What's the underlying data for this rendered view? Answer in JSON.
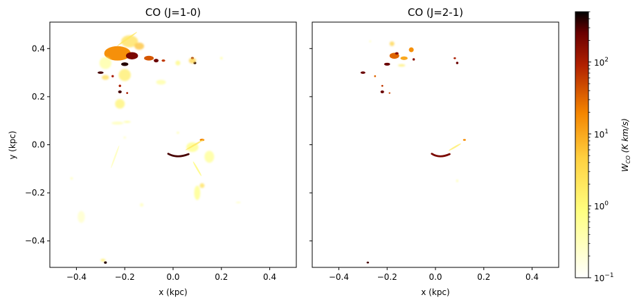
{
  "chart_data": {
    "type": "heatmap",
    "colormap": "afmhot_r",
    "xlabel": "x (kpc)",
    "ylabel": "y (kpc)",
    "xlim": [
      -0.51,
      0.51
    ],
    "ylim": [
      -0.51,
      0.51
    ],
    "xticks": [
      -0.4,
      -0.2,
      0.0,
      0.2,
      0.4
    ],
    "yticks": [
      -0.4,
      -0.2,
      0.0,
      0.2,
      0.4
    ],
    "xtick_labels": [
      "−0.4",
      "−0.2",
      "0.0",
      "0.2",
      "0.4"
    ],
    "ytick_labels": [
      "−0.4",
      "−0.2",
      "0.0",
      "0.2",
      "0.4"
    ],
    "panels": [
      {
        "title": "CO (J=1-0)",
        "features": [
          {
            "kind": "clump",
            "x": -0.23,
            "y": 0.38,
            "w": 0.11,
            "h": 0.06,
            "log_level": 1.2
          },
          {
            "kind": "clump",
            "x": -0.17,
            "y": 0.37,
            "w": 0.05,
            "h": 0.03,
            "log_level": 2.3
          },
          {
            "kind": "clump",
            "x": -0.2,
            "y": 0.335,
            "w": 0.03,
            "h": 0.015,
            "log_level": 2.6
          },
          {
            "kind": "clump",
            "x": -0.1,
            "y": 0.36,
            "w": 0.04,
            "h": 0.02,
            "log_level": 1.6
          },
          {
            "kind": "clump",
            "x": -0.07,
            "y": 0.35,
            "w": 0.02,
            "h": 0.015,
            "log_level": 2.4
          },
          {
            "kind": "clump",
            "x": -0.04,
            "y": 0.35,
            "w": 0.015,
            "h": 0.01,
            "log_level": 1.8
          },
          {
            "kind": "clump",
            "x": -0.18,
            "y": 0.43,
            "w": 0.07,
            "h": 0.05,
            "log_level": 0.4
          },
          {
            "kind": "clump",
            "x": -0.2,
            "y": 0.29,
            "w": 0.05,
            "h": 0.05,
            "log_level": 0.2
          },
          {
            "kind": "clump",
            "x": -0.3,
            "y": 0.3,
            "w": 0.025,
            "h": 0.01,
            "log_level": 2.5
          },
          {
            "kind": "clump",
            "x": -0.28,
            "y": 0.28,
            "w": 0.03,
            "h": 0.02,
            "log_level": 0.5
          },
          {
            "kind": "clump",
            "x": -0.25,
            "y": 0.285,
            "w": 0.01,
            "h": 0.01,
            "log_level": 2.0
          },
          {
            "kind": "clump",
            "x": -0.22,
            "y": 0.22,
            "w": 0.015,
            "h": 0.012,
            "log_level": 2.5
          },
          {
            "kind": "clump",
            "x": -0.22,
            "y": 0.245,
            "w": 0.01,
            "h": 0.01,
            "log_level": 2.0
          },
          {
            "kind": "clump",
            "x": -0.19,
            "y": 0.215,
            "w": 0.008,
            "h": 0.008,
            "log_level": 2.0
          },
          {
            "kind": "clump",
            "x": -0.22,
            "y": 0.17,
            "w": 0.04,
            "h": 0.04,
            "log_level": 0.1
          },
          {
            "kind": "clump",
            "x": 0.08,
            "y": 0.36,
            "w": 0.012,
            "h": 0.01,
            "log_level": 2.2
          },
          {
            "kind": "clump",
            "x": 0.09,
            "y": 0.34,
            "w": 0.012,
            "h": 0.01,
            "log_level": 2.6
          },
          {
            "kind": "clump",
            "x": 0.08,
            "y": 0.35,
            "w": 0.03,
            "h": 0.025,
            "log_level": 0.6
          },
          {
            "kind": "clump",
            "x": 0.02,
            "y": 0.34,
            "w": 0.02,
            "h": 0.02,
            "log_level": 0.0
          },
          {
            "kind": "clump",
            "x": 0.2,
            "y": 0.36,
            "w": 0.01,
            "h": 0.01,
            "log_level": -0.2
          },
          {
            "kind": "clump",
            "x": -0.05,
            "y": 0.26,
            "w": 0.04,
            "h": 0.02,
            "log_level": -0.3
          },
          {
            "kind": "clump",
            "x": -0.23,
            "y": 0.09,
            "w": 0.05,
            "h": 0.012,
            "log_level": -0.4
          },
          {
            "kind": "clump",
            "x": -0.19,
            "y": 0.095,
            "w": 0.03,
            "h": 0.008,
            "log_level": -0.2
          },
          {
            "kind": "clump",
            "x": -0.2,
            "y": 0.03,
            "w": 0.01,
            "h": 0.01,
            "log_level": -0.5
          },
          {
            "kind": "clump",
            "x": 0.02,
            "y": 0.05,
            "w": 0.01,
            "h": 0.008,
            "log_level": -0.2
          },
          {
            "kind": "clump",
            "x": 0.12,
            "y": 0.02,
            "w": 0.02,
            "h": 0.01,
            "log_level": 1.3
          },
          {
            "kind": "clump",
            "x": 0.08,
            "y": -0.01,
            "w": 0.05,
            "h": 0.04,
            "log_level": -0.1
          },
          {
            "kind": "clump",
            "x": 0.15,
            "y": -0.05,
            "w": 0.04,
            "h": 0.05,
            "log_level": -0.2
          },
          {
            "kind": "clump",
            "x": 0.1,
            "y": -0.2,
            "w": 0.025,
            "h": 0.06,
            "log_level": -0.1
          },
          {
            "kind": "clump",
            "x": 0.12,
            "y": -0.17,
            "w": 0.02,
            "h": 0.02,
            "log_level": 0.4
          },
          {
            "kind": "clump",
            "x": 0.27,
            "y": -0.24,
            "w": 0.02,
            "h": 0.006,
            "log_level": -0.5
          },
          {
            "kind": "clump",
            "x": -0.28,
            "y": -0.49,
            "w": 0.012,
            "h": 0.01,
            "log_level": 2.6
          },
          {
            "kind": "clump",
            "x": -0.29,
            "y": -0.48,
            "w": 0.02,
            "h": 0.012,
            "log_level": 0.2
          },
          {
            "kind": "clump",
            "x": -0.38,
            "y": -0.3,
            "w": 0.03,
            "h": 0.05,
            "log_level": -0.6
          },
          {
            "kind": "clump",
            "x": -0.42,
            "y": -0.14,
            "w": 0.01,
            "h": 0.01,
            "log_level": -0.4
          },
          {
            "kind": "clump",
            "x": -0.13,
            "y": -0.25,
            "w": 0.015,
            "h": 0.015,
            "log_level": -0.5
          },
          {
            "kind": "clump",
            "x": -0.28,
            "y": 0.34,
            "w": 0.05,
            "h": 0.05,
            "log_level": -0.3
          },
          {
            "kind": "clump",
            "x": -0.14,
            "y": 0.41,
            "w": 0.04,
            "h": 0.03,
            "log_level": 0.8
          },
          {
            "kind": "arc",
            "x": 0.02,
            "y": -0.045,
            "w": 0.04,
            "h": 0.01,
            "log_level": 2.5
          },
          {
            "kind": "filament",
            "x": -0.19,
            "y": 0.44,
            "w": 0.1,
            "h": 0.004,
            "angle": -35,
            "log_level": 0.3
          },
          {
            "kind": "filament",
            "x": 0.09,
            "y": 0.0,
            "w": 0.09,
            "h": 0.004,
            "angle": -30,
            "log_level": 0.3
          },
          {
            "kind": "filament",
            "x": 0.1,
            "y": -0.1,
            "w": 0.07,
            "h": 0.004,
            "angle": 60,
            "log_level": 0.0
          },
          {
            "kind": "filament",
            "x": -0.24,
            "y": -0.05,
            "w": 0.1,
            "h": 0.004,
            "angle": -70,
            "log_level": -0.5
          }
        ]
      },
      {
        "title": "CO (J=2-1)",
        "features": [
          {
            "kind": "clump",
            "x": -0.17,
            "y": 0.37,
            "w": 0.04,
            "h": 0.025,
            "log_level": 1.5
          },
          {
            "kind": "clump",
            "x": -0.2,
            "y": 0.335,
            "w": 0.025,
            "h": 0.012,
            "log_level": 2.4
          },
          {
            "kind": "clump",
            "x": -0.16,
            "y": 0.38,
            "w": 0.015,
            "h": 0.01,
            "log_level": 2.2
          },
          {
            "kind": "clump",
            "x": -0.13,
            "y": 0.36,
            "w": 0.03,
            "h": 0.015,
            "log_level": 1.0
          },
          {
            "kind": "clump",
            "x": -0.1,
            "y": 0.395,
            "w": 0.02,
            "h": 0.02,
            "log_level": 1.2
          },
          {
            "kind": "clump",
            "x": -0.09,
            "y": 0.355,
            "w": 0.01,
            "h": 0.01,
            "log_level": 2.2
          },
          {
            "kind": "clump",
            "x": -0.18,
            "y": 0.42,
            "w": 0.02,
            "h": 0.02,
            "log_level": 0.6
          },
          {
            "kind": "clump",
            "x": -0.14,
            "y": 0.33,
            "w": 0.03,
            "h": 0.01,
            "log_level": 0.2
          },
          {
            "kind": "clump",
            "x": -0.3,
            "y": 0.3,
            "w": 0.02,
            "h": 0.01,
            "log_level": 2.4
          },
          {
            "kind": "clump",
            "x": -0.25,
            "y": 0.285,
            "w": 0.008,
            "h": 0.008,
            "log_level": 1.5
          },
          {
            "kind": "clump",
            "x": -0.22,
            "y": 0.22,
            "w": 0.015,
            "h": 0.012,
            "log_level": 2.4
          },
          {
            "kind": "clump",
            "x": -0.22,
            "y": 0.245,
            "w": 0.008,
            "h": 0.008,
            "log_level": 1.8
          },
          {
            "kind": "clump",
            "x": -0.19,
            "y": 0.215,
            "w": 0.006,
            "h": 0.006,
            "log_level": 1.7
          },
          {
            "kind": "clump",
            "x": 0.08,
            "y": 0.36,
            "w": 0.01,
            "h": 0.008,
            "log_level": 2.0
          },
          {
            "kind": "clump",
            "x": 0.09,
            "y": 0.34,
            "w": 0.01,
            "h": 0.01,
            "log_level": 2.4
          },
          {
            "kind": "clump",
            "x": -0.27,
            "y": 0.43,
            "w": 0.006,
            "h": 0.006,
            "log_level": -0.2
          },
          {
            "kind": "clump",
            "x": 0.12,
            "y": 0.02,
            "w": 0.012,
            "h": 0.008,
            "log_level": 1.2
          },
          {
            "kind": "clump",
            "x": 0.09,
            "y": -0.15,
            "w": 0.008,
            "h": 0.01,
            "log_level": -0.2
          },
          {
            "kind": "clump",
            "x": -0.28,
            "y": -0.49,
            "w": 0.01,
            "h": 0.008,
            "log_level": 2.5
          },
          {
            "kind": "arc",
            "x": 0.02,
            "y": -0.045,
            "w": 0.035,
            "h": 0.01,
            "log_level": 2.3
          },
          {
            "kind": "filament",
            "x": 0.08,
            "y": -0.01,
            "w": 0.06,
            "h": 0.003,
            "angle": -30,
            "log_level": 0.2
          }
        ]
      }
    ],
    "colorbar": {
      "label": "W_CO (K km/s)",
      "label_main": "W",
      "label_sub": "CO",
      "label_unit": " (K km/s)",
      "scale": "log",
      "vmin": 0.1,
      "vmax": 500,
      "ticks": [
        0.1,
        1,
        10,
        100
      ],
      "tick_labels": [
        {
          "base": "10",
          "exp": "−1"
        },
        {
          "base": "10",
          "exp": "0"
        },
        {
          "base": "10",
          "exp": "1"
        },
        {
          "base": "10",
          "exp": "2"
        }
      ],
      "stops": [
        {
          "at": 0.0,
          "color": "#ffffff"
        },
        {
          "at": 0.25,
          "color": "#ffff80"
        },
        {
          "at": 0.45,
          "color": "#ffd040"
        },
        {
          "at": 0.62,
          "color": "#f48500"
        },
        {
          "at": 0.8,
          "color": "#b02000"
        },
        {
          "at": 0.92,
          "color": "#6a0000"
        },
        {
          "at": 1.0,
          "color": "#000000"
        }
      ]
    }
  }
}
